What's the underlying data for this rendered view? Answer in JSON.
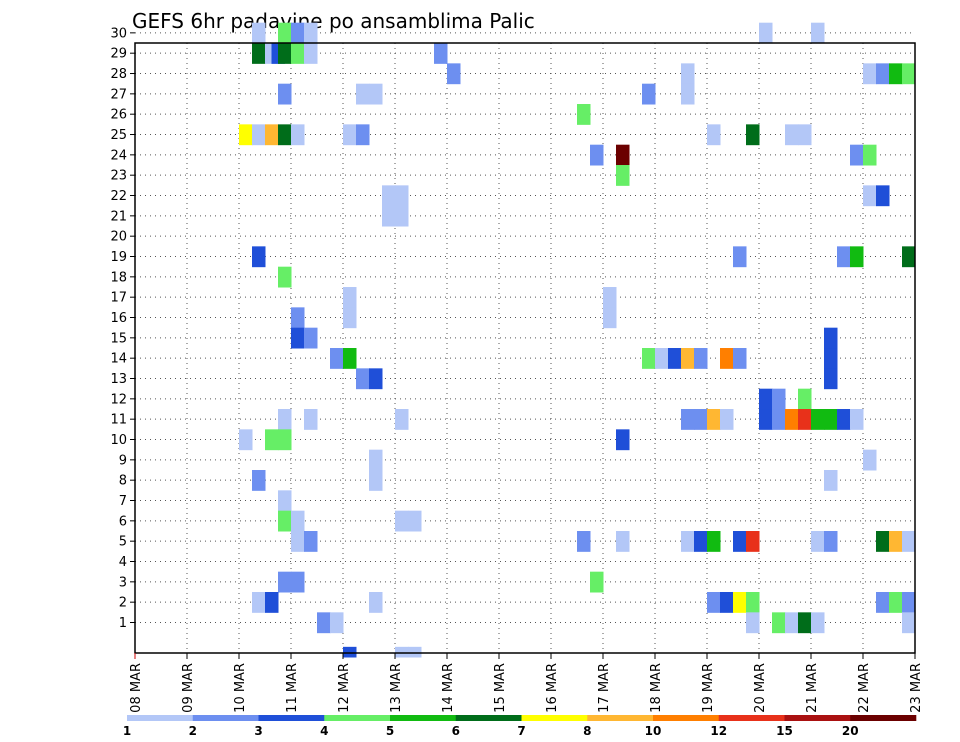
{
  "chart_data": {
    "type": "heatmap",
    "title": "GEFS 6hr padavine po ansamblima Palic",
    "xlabel": "",
    "ylabel": "",
    "x_tick_labels": [
      "08 MAR",
      "09 MAR",
      "10 MAR",
      "11 MAR",
      "12 MAR",
      "13 MAR",
      "14 MAR",
      "15 MAR",
      "16 MAR",
      "17 MAR",
      "18 MAR",
      "19 MAR",
      "20 MAR",
      "21 MAR",
      "22 MAR",
      "23 MAR"
    ],
    "y_tick_labels": [
      "1",
      "2",
      "3",
      "4",
      "5",
      "6",
      "7",
      "8",
      "9",
      "10",
      "11",
      "12",
      "13",
      "14",
      "15",
      "16",
      "17",
      "18",
      "19",
      "20",
      "21",
      "22",
      "23",
      "24",
      "25",
      "26",
      "27",
      "28",
      "29",
      "30"
    ],
    "xlim_days": [
      0,
      15
    ],
    "ylim_members": [
      0,
      30
    ],
    "grid": true,
    "colorbar": {
      "tick_labels": [
        "1",
        "2",
        "3",
        "4",
        "5",
        "6",
        "7",
        "8",
        "10",
        "12",
        "15",
        "20"
      ],
      "colors": [
        "#b3c7f7",
        "#6d8ff0",
        "#1f4fd8",
        "#66ee66",
        "#11bb11",
        "#006d1a",
        "#ffff00",
        "#ffb732",
        "#ff7f00",
        "#e8311a",
        "#aa1111",
        "#6b0000"
      ]
    },
    "cells": [
      {
        "m": 30,
        "t": 9,
        "c": 0
      },
      {
        "m": 30,
        "t": 11,
        "c": 3
      },
      {
        "m": 30,
        "t": 12,
        "c": 1
      },
      {
        "m": 30,
        "t": 13,
        "c": 0
      },
      {
        "m": 30,
        "t": 48,
        "c": 0
      },
      {
        "m": 30,
        "t": 52,
        "c": 0
      },
      {
        "m": 29,
        "t": 9,
        "c": 5
      },
      {
        "m": 29,
        "t": 10,
        "c": 0
      },
      {
        "m": 29,
        "t": 10.5,
        "c": 2
      },
      {
        "m": 29,
        "t": 11,
        "c": 5
      },
      {
        "m": 29,
        "t": 12,
        "c": 3
      },
      {
        "m": 29,
        "t": 13,
        "c": 0
      },
      {
        "m": 29,
        "t": 23,
        "c": 1
      },
      {
        "m": 28,
        "t": 24,
        "c": 1
      },
      {
        "m": 28,
        "t": 42,
        "c": 0
      },
      {
        "m": 28,
        "t": 56,
        "c": 0
      },
      {
        "m": 28,
        "t": 57,
        "c": 1
      },
      {
        "m": 28,
        "t": 58,
        "c": 4
      },
      {
        "m": 28,
        "t": 59,
        "c": 3
      },
      {
        "m": 27,
        "t": 11,
        "c": 1
      },
      {
        "m": 27,
        "t": 17,
        "c": 0
      },
      {
        "m": 27,
        "t": 18,
        "c": 0
      },
      {
        "m": 27,
        "t": 39,
        "c": 1
      },
      {
        "m": 27,
        "t": 42,
        "c": 0
      },
      {
        "m": 26,
        "t": 34,
        "c": 3
      },
      {
        "m": 25,
        "t": 8,
        "c": 6
      },
      {
        "m": 25,
        "t": 9,
        "c": 0
      },
      {
        "m": 25,
        "t": 10,
        "c": 7
      },
      {
        "m": 25,
        "t": 11,
        "c": 5
      },
      {
        "m": 25,
        "t": 12,
        "c": 0
      },
      {
        "m": 25,
        "t": 16,
        "c": 0
      },
      {
        "m": 25,
        "t": 17,
        "c": 1
      },
      {
        "m": 25,
        "t": 44,
        "c": 0
      },
      {
        "m": 25,
        "t": 47,
        "c": 5
      },
      {
        "m": 25,
        "t": 50,
        "c": 0
      },
      {
        "m": 25,
        "t": 51,
        "c": 0
      },
      {
        "m": 24,
        "t": 35,
        "c": 1
      },
      {
        "m": 24,
        "t": 37,
        "c": 11
      },
      {
        "m": 24,
        "t": 55,
        "c": 1
      },
      {
        "m": 24,
        "t": 56,
        "c": 3
      },
      {
        "m": 23,
        "t": 37,
        "c": 3
      },
      {
        "m": 22,
        "t": 19,
        "c": 0
      },
      {
        "m": 22,
        "t": 20,
        "c": 0
      },
      {
        "m": 22,
        "t": 56,
        "c": 0
      },
      {
        "m": 22,
        "t": 57,
        "c": 2
      },
      {
        "m": 21,
        "t": 19,
        "c": 0
      },
      {
        "m": 21,
        "t": 20,
        "c": 0
      },
      {
        "m": 19,
        "t": 9,
        "c": 2
      },
      {
        "m": 19,
        "t": 46,
        "c": 1
      },
      {
        "m": 19,
        "t": 54,
        "c": 1
      },
      {
        "m": 19,
        "t": 55,
        "c": 4
      },
      {
        "m": 19,
        "t": 59,
        "c": 5
      },
      {
        "m": 18,
        "t": 11,
        "c": 3
      },
      {
        "m": 17,
        "t": 16,
        "c": 0
      },
      {
        "m": 17,
        "t": 36,
        "c": 0
      },
      {
        "m": 16,
        "t": 12,
        "c": 1
      },
      {
        "m": 16,
        "t": 16,
        "c": 0
      },
      {
        "m": 16,
        "t": 36,
        "c": 0
      },
      {
        "m": 15,
        "t": 12,
        "c": 2
      },
      {
        "m": 15,
        "t": 13,
        "c": 1
      },
      {
        "m": 15,
        "t": 53,
        "c": 2
      },
      {
        "m": 14,
        "t": 15,
        "c": 1
      },
      {
        "m": 14,
        "t": 16,
        "c": 4
      },
      {
        "m": 14,
        "t": 39,
        "c": 3
      },
      {
        "m": 14,
        "t": 40,
        "c": 0
      },
      {
        "m": 14,
        "t": 41,
        "c": 2
      },
      {
        "m": 14,
        "t": 42,
        "c": 7
      },
      {
        "m": 14,
        "t": 43,
        "c": 1
      },
      {
        "m": 14,
        "t": 45,
        "c": 8
      },
      {
        "m": 14,
        "t": 46,
        "c": 1
      },
      {
        "m": 14,
        "t": 53,
        "c": 2
      },
      {
        "m": 13,
        "t": 17,
        "c": 1
      },
      {
        "m": 13,
        "t": 18,
        "c": 2
      },
      {
        "m": 13,
        "t": 53,
        "c": 2
      },
      {
        "m": 12,
        "t": 48,
        "c": 2
      },
      {
        "m": 12,
        "t": 49,
        "c": 1
      },
      {
        "m": 12,
        "t": 51,
        "c": 3
      },
      {
        "m": 11,
        "t": 11,
        "c": 0
      },
      {
        "m": 11,
        "t": 13,
        "c": 0
      },
      {
        "m": 11,
        "t": 20,
        "c": 0
      },
      {
        "m": 11,
        "t": 42,
        "c": 1
      },
      {
        "m": 11,
        "t": 43,
        "c": 1
      },
      {
        "m": 11,
        "t": 44,
        "c": 7
      },
      {
        "m": 11,
        "t": 45,
        "c": 0
      },
      {
        "m": 11,
        "t": 48,
        "c": 2
      },
      {
        "m": 11,
        "t": 49,
        "c": 1
      },
      {
        "m": 11,
        "t": 50,
        "c": 8
      },
      {
        "m": 11,
        "t": 51,
        "c": 9
      },
      {
        "m": 11,
        "t": 52,
        "c": 4
      },
      {
        "m": 11,
        "t": 53,
        "c": 4
      },
      {
        "m": 11,
        "t": 54,
        "c": 2
      },
      {
        "m": 11,
        "t": 55,
        "c": 0
      },
      {
        "m": 10,
        "t": 8,
        "c": 0
      },
      {
        "m": 10,
        "t": 10,
        "c": 3
      },
      {
        "m": 10,
        "t": 11,
        "c": 3
      },
      {
        "m": 10,
        "t": 37,
        "c": 2
      },
      {
        "m": 9,
        "t": 18,
        "c": 0
      },
      {
        "m": 9,
        "t": 56,
        "c": 0
      },
      {
        "m": 8,
        "t": 9,
        "c": 1
      },
      {
        "m": 8,
        "t": 18,
        "c": 0
      },
      {
        "m": 8,
        "t": 53,
        "c": 0
      },
      {
        "m": 7,
        "t": 11,
        "c": 0
      },
      {
        "m": 6,
        "t": 11,
        "c": 3
      },
      {
        "m": 6,
        "t": 12,
        "c": 0
      },
      {
        "m": 6,
        "t": 20,
        "c": 0
      },
      {
        "m": 6,
        "t": 21,
        "c": 0
      },
      {
        "m": 5,
        "t": 12,
        "c": 0
      },
      {
        "m": 5,
        "t": 13,
        "c": 1
      },
      {
        "m": 5,
        "t": 34,
        "c": 1
      },
      {
        "m": 5,
        "t": 37,
        "c": 0
      },
      {
        "m": 5,
        "t": 42,
        "c": 0
      },
      {
        "m": 5,
        "t": 43,
        "c": 2
      },
      {
        "m": 5,
        "t": 44,
        "c": 4
      },
      {
        "m": 5,
        "t": 46,
        "c": 2
      },
      {
        "m": 5,
        "t": 47,
        "c": 9
      },
      {
        "m": 5,
        "t": 52,
        "c": 0
      },
      {
        "m": 5,
        "t": 53,
        "c": 1
      },
      {
        "m": 5,
        "t": 57,
        "c": 5
      },
      {
        "m": 5,
        "t": 58,
        "c": 7
      },
      {
        "m": 5,
        "t": 59,
        "c": 0
      },
      {
        "m": 3,
        "t": 11,
        "c": 1
      },
      {
        "m": 3,
        "t": 12,
        "c": 1
      },
      {
        "m": 3,
        "t": 35,
        "c": 3
      },
      {
        "m": 2,
        "t": 9,
        "c": 0
      },
      {
        "m": 2,
        "t": 10,
        "c": 2
      },
      {
        "m": 2,
        "t": 18,
        "c": 0
      },
      {
        "m": 2,
        "t": 44,
        "c": 1
      },
      {
        "m": 2,
        "t": 45,
        "c": 2
      },
      {
        "m": 2,
        "t": 46,
        "c": 6
      },
      {
        "m": 2,
        "t": 47,
        "c": 3
      },
      {
        "m": 2,
        "t": 57,
        "c": 1
      },
      {
        "m": 2,
        "t": 58,
        "c": 3
      },
      {
        "m": 2,
        "t": 59,
        "c": 1
      },
      {
        "m": 1,
        "t": 14,
        "c": 1
      },
      {
        "m": 1,
        "t": 15,
        "c": 0
      },
      {
        "m": 1,
        "t": 47,
        "c": 0
      },
      {
        "m": 1,
        "t": 49,
        "c": 3
      },
      {
        "m": 1,
        "t": 50,
        "c": 0
      },
      {
        "m": 1,
        "t": 51,
        "c": 5
      },
      {
        "m": 1,
        "t": 52,
        "c": 0
      },
      {
        "m": 1,
        "t": 59,
        "c": 0
      },
      {
        "m": 0,
        "t": 16,
        "c": 2
      },
      {
        "m": 0,
        "t": 20,
        "c": 0
      },
      {
        "m": 0,
        "t": 21,
        "c": 0
      }
    ]
  }
}
